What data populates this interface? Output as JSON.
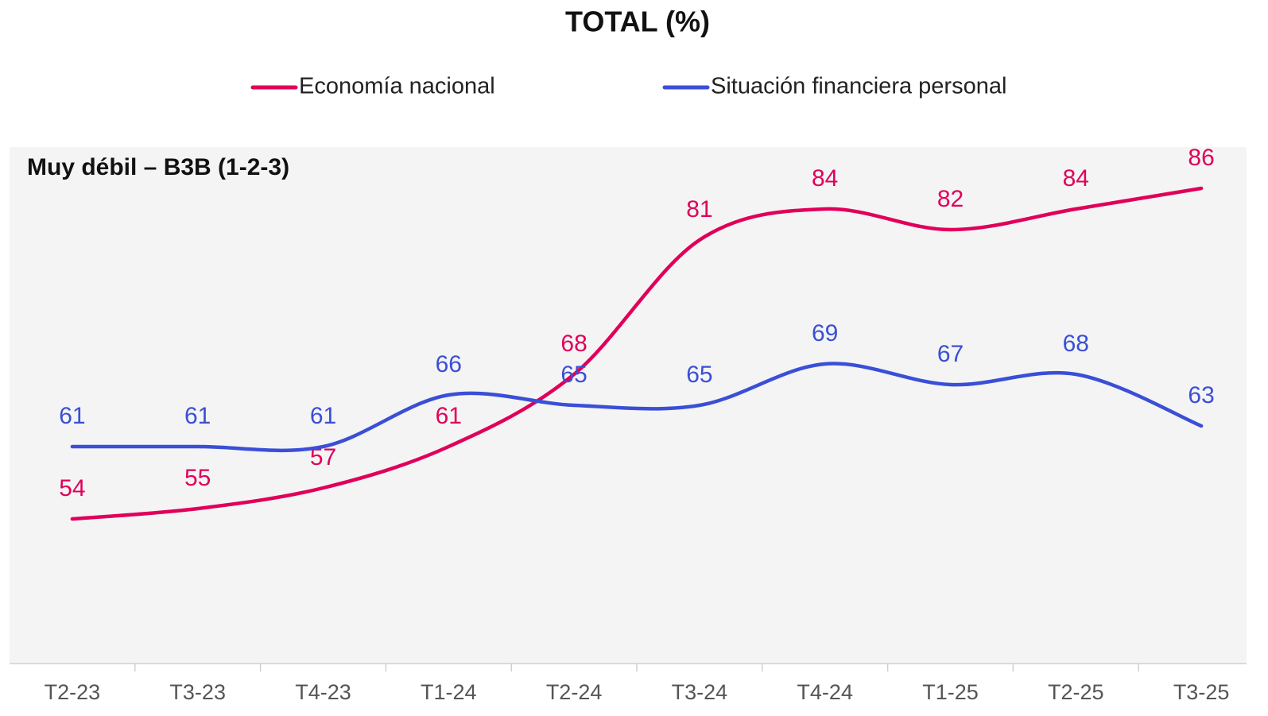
{
  "chart_data": {
    "type": "line",
    "title": "TOTAL (%)",
    "annotation": "Muy débil – B3B (1-2-3)",
    "categories": [
      "T2-23",
      "T3-23",
      "T4-23",
      "T1-24",
      "T2-24",
      "T3-24",
      "T4-24",
      "T1-25",
      "T2-25",
      "T3-25"
    ],
    "series": [
      {
        "name": "Economía nacional",
        "color": "#e0005a",
        "values": [
          54,
          55,
          57,
          61,
          68,
          81,
          84,
          82,
          84,
          86
        ]
      },
      {
        "name": "Situación financiera personal",
        "color": "#3a4fd6",
        "values": [
          61,
          61,
          61,
          66,
          65,
          65,
          69,
          67,
          68,
          63
        ]
      }
    ],
    "ylim": [
      40,
      90
    ],
    "legend": "top"
  }
}
